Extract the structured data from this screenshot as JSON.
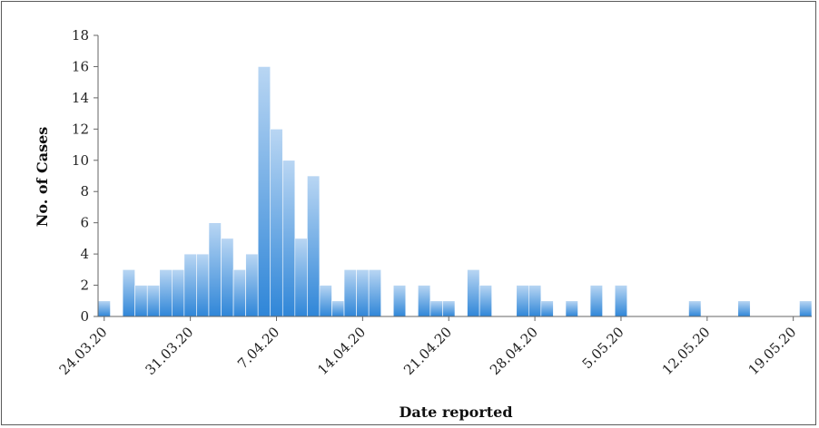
{
  "chart_data": {
    "type": "bar",
    "xlabel": "Date reported",
    "ylabel": "No. of Cases",
    "ylim": [
      0,
      18
    ],
    "yticks": [
      0,
      2,
      4,
      6,
      8,
      10,
      12,
      14,
      16,
      18
    ],
    "grid": false,
    "x_start": "24.03.20",
    "x_end": "20.05.20",
    "xtick_labels": [
      "24.03.20",
      "31.03.20",
      "7.04.20",
      "14.04.20",
      "21.04.20",
      "28.04.20",
      "5.05.20",
      "12.05.20",
      "19.05.20"
    ],
    "dates": [
      "24.03.20",
      "25.03.20",
      "26.03.20",
      "27.03.20",
      "28.03.20",
      "29.03.20",
      "30.03.20",
      "31.03.20",
      "1.04.20",
      "2.04.20",
      "3.04.20",
      "4.04.20",
      "5.04.20",
      "6.04.20",
      "7.04.20",
      "8.04.20",
      "9.04.20",
      "10.04.20",
      "11.04.20",
      "12.04.20",
      "13.04.20",
      "14.04.20",
      "15.04.20",
      "16.04.20",
      "17.04.20",
      "18.04.20",
      "19.04.20",
      "20.04.20",
      "21.04.20",
      "22.04.20",
      "23.04.20",
      "24.04.20",
      "25.04.20",
      "26.04.20",
      "27.04.20",
      "28.04.20",
      "29.04.20",
      "30.04.20",
      "1.05.20",
      "2.05.20",
      "3.05.20",
      "4.05.20",
      "5.05.20",
      "6.05.20",
      "7.05.20",
      "8.05.20",
      "9.05.20",
      "10.05.20",
      "11.05.20",
      "12.05.20",
      "13.05.20",
      "14.05.20",
      "15.05.20",
      "16.05.20",
      "17.05.20",
      "18.05.20",
      "19.05.20",
      "20.05.20"
    ],
    "values": [
      1,
      0,
      3,
      2,
      2,
      3,
      3,
      4,
      4,
      6,
      5,
      3,
      4,
      16,
      12,
      10,
      5,
      9,
      2,
      1,
      3,
      3,
      3,
      0,
      2,
      0,
      2,
      1,
      1,
      0,
      3,
      2,
      0,
      0,
      2,
      2,
      1,
      0,
      1,
      0,
      2,
      0,
      2,
      0,
      0,
      0,
      0,
      0,
      1,
      0,
      0,
      0,
      1,
      0,
      0,
      0,
      0,
      1
    ],
    "bar_color": "#3f8fd8"
  }
}
